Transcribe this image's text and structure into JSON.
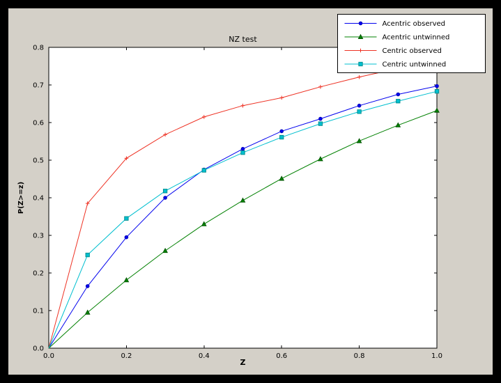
{
  "colors": {
    "window_bg": "#000000",
    "figure_bg": "#d4d0c8",
    "axes_bg": "#ffffff",
    "axes_frame": "#000000",
    "tick_label": "#000000",
    "legend_bg": "#ffffff",
    "legend_border": "#000000"
  },
  "chart_data": {
    "type": "line",
    "title": "NZ test",
    "xlabel": "Z",
    "ylabel": "P(Z>=z)",
    "xlim": [
      0.0,
      1.0
    ],
    "ylim": [
      0.0,
      0.8
    ],
    "grid": false,
    "legend_position": "upper-right",
    "x_ticks": [
      0.0,
      0.2,
      0.4,
      0.6,
      0.8,
      1.0
    ],
    "y_ticks": [
      0.0,
      0.1,
      0.2,
      0.3,
      0.4,
      0.5,
      0.6,
      0.7,
      0.8
    ],
    "x": [
      0.0,
      0.1,
      0.2,
      0.3,
      0.4,
      0.5,
      0.6,
      0.7,
      0.8,
      0.9,
      1.0
    ],
    "series": [
      {
        "name": "Acentric observed",
        "color": "#0000ee",
        "marker": "circle",
        "marker_edge": "#0000aa",
        "values": [
          0.0,
          0.165,
          0.295,
          0.4,
          0.475,
          0.53,
          0.577,
          0.61,
          0.645,
          0.675,
          0.697
        ]
      },
      {
        "name": "Acentric untwinned",
        "color": "#008000",
        "marker": "triangle",
        "marker_edge": "#005000",
        "values": [
          0.0,
          0.095,
          0.181,
          0.259,
          0.33,
          0.393,
          0.451,
          0.503,
          0.551,
          0.593,
          0.632
        ]
      },
      {
        "name": "Centric observed",
        "color": "#ee3224",
        "marker": "plus",
        "marker_edge": "#ee3224",
        "values": [
          0.0,
          0.385,
          0.505,
          0.568,
          0.615,
          0.645,
          0.666,
          0.695,
          0.721,
          0.744,
          0.76
        ]
      },
      {
        "name": "Centric untwinned",
        "color": "#00bfcf",
        "marker": "square",
        "marker_edge": "#008b8b",
        "values": [
          0.0,
          0.248,
          0.345,
          0.418,
          0.473,
          0.52,
          0.561,
          0.597,
          0.629,
          0.657,
          0.683
        ]
      }
    ]
  }
}
